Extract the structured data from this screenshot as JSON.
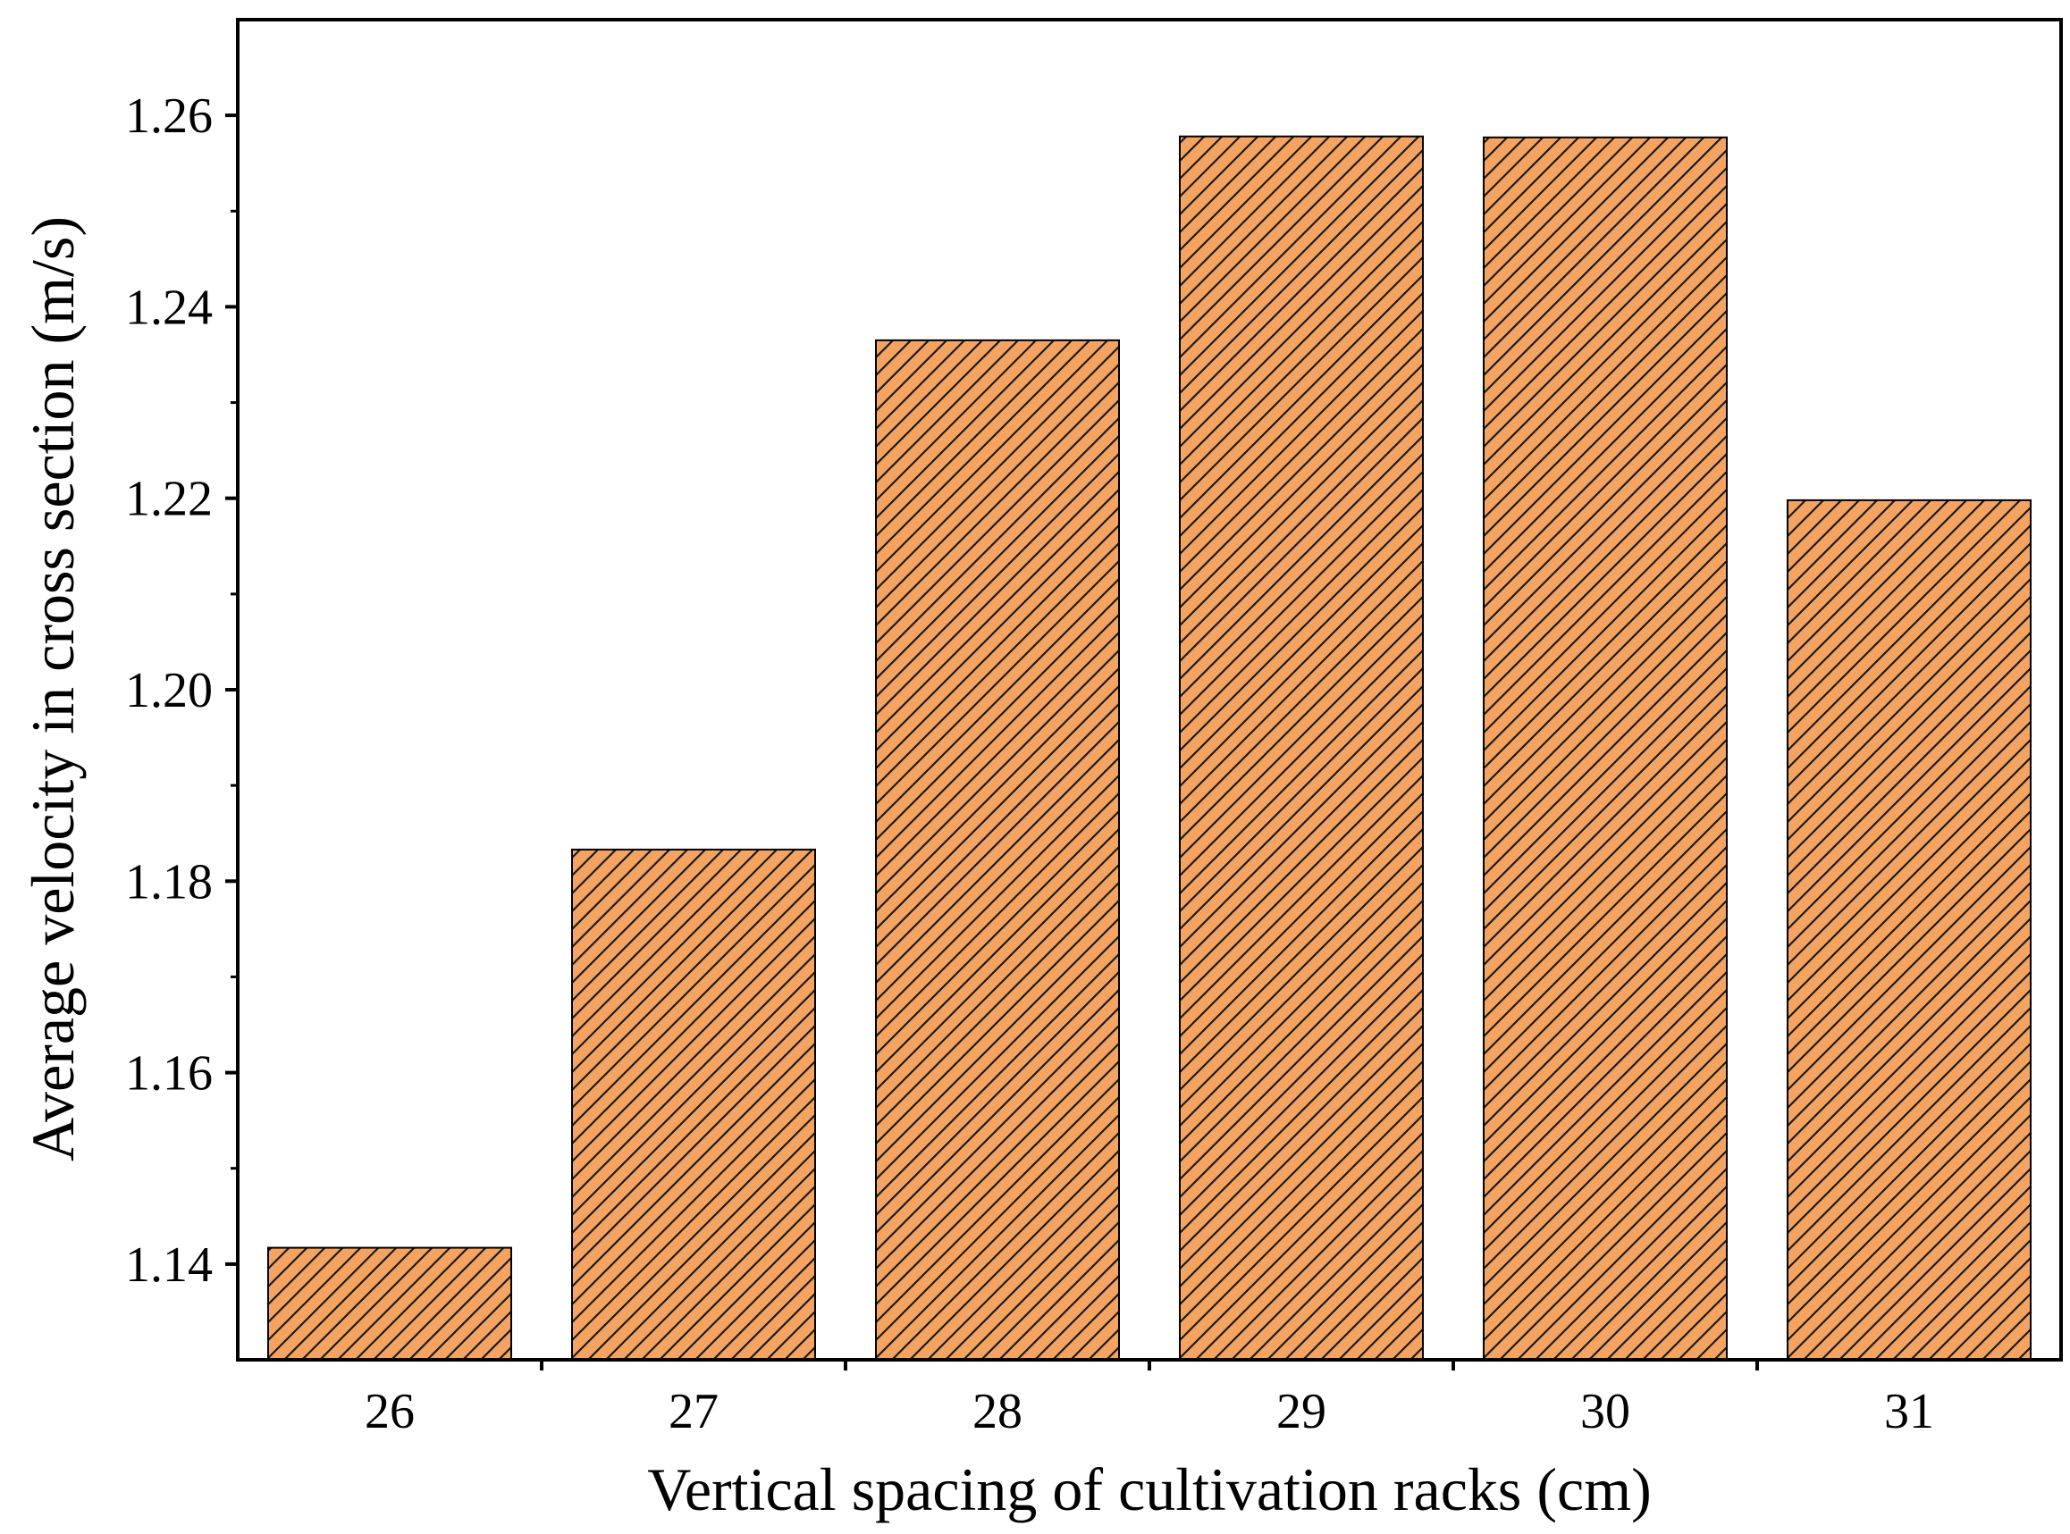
{
  "chart_data": {
    "type": "bar",
    "title": "",
    "xlabel": "Vertical spacing of cultivation racks (cm)",
    "ylabel": "Average velocity in cross section (m/s)",
    "categories": [
      "26",
      "27",
      "28",
      "29",
      "30",
      "31"
    ],
    "values": [
      1.1417,
      1.1833,
      1.2365,
      1.2578,
      1.2577,
      1.2198
    ],
    "ylim": [
      1.13,
      1.27
    ],
    "yticks": [
      1.14,
      1.16,
      1.18,
      1.2,
      1.22,
      1.24,
      1.26
    ],
    "ytick_labels": [
      "1.14",
      "1.16",
      "1.18",
      "1.20",
      "1.22",
      "1.24",
      "1.26"
    ],
    "grid": false,
    "legend": "none",
    "bar_color": "#F4A460",
    "hatch_color": "#1a1a1a",
    "hatch": "diagonal"
  }
}
